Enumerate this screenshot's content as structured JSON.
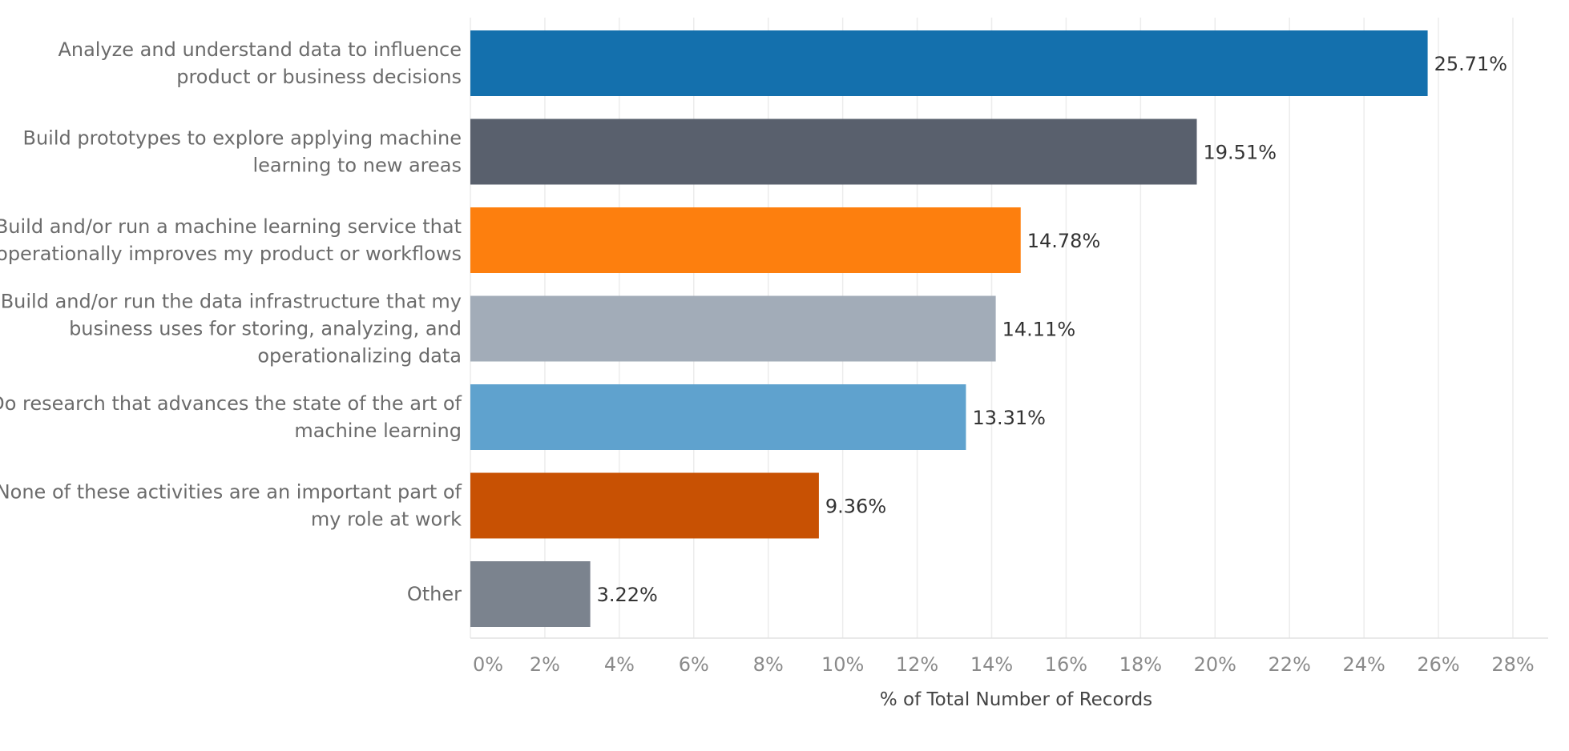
{
  "chart_data": {
    "type": "bar",
    "orientation": "horizontal",
    "title": "",
    "xlabel": "% of Total Number of Records",
    "ylabel": "",
    "xlim": [
      0,
      28
    ],
    "x_ticks": [
      0,
      2,
      4,
      6,
      8,
      10,
      12,
      14,
      16,
      18,
      20,
      22,
      24,
      26,
      28
    ],
    "x_tick_labels": [
      "0%",
      "2%",
      "4%",
      "6%",
      "8%",
      "10%",
      "12%",
      "14%",
      "16%",
      "18%",
      "20%",
      "22%",
      "24%",
      "26%",
      "28%"
    ],
    "grid": "vertical",
    "legend": "none",
    "categories": [
      [
        "Analyze and understand data to influence",
        "product or business decisions"
      ],
      [
        "Build prototypes to explore applying machine",
        "learning to new areas"
      ],
      [
        "Build and/or run a machine learning service that",
        "operationally improves my product or workflows"
      ],
      [
        "Build and/or run the data infrastructure that my",
        "business uses for storing, analyzing, and",
        "operationalizing data"
      ],
      [
        "Do research that advances the state of the art of",
        "machine learning"
      ],
      [
        "None of these activities are an important part of",
        "my role at work"
      ],
      [
        "Other"
      ]
    ],
    "values": [
      25.71,
      19.51,
      14.78,
      14.11,
      13.31,
      9.36,
      3.22
    ],
    "value_labels": [
      "25.71%",
      "19.51%",
      "14.78%",
      "14.11%",
      "13.31%",
      "9.36%",
      "3.22%"
    ],
    "colors": [
      "#1470ad",
      "#59606d",
      "#fd7f0e",
      "#a2acb8",
      "#5fa2ce",
      "#c85103",
      "#7b838e"
    ]
  }
}
